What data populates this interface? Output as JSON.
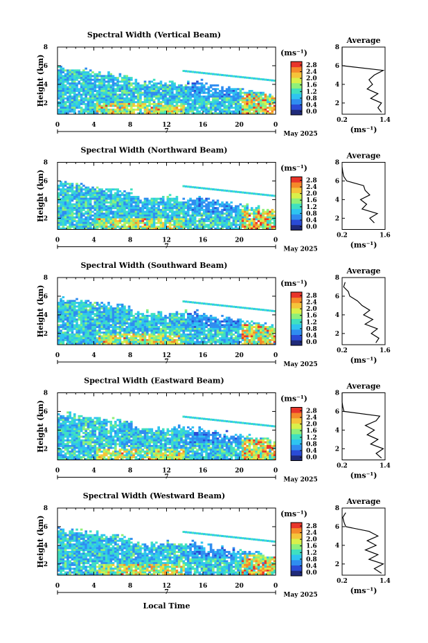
{
  "page": {
    "x_axis_label": "Local Time",
    "date_marker": "7",
    "date_label": "May 2025"
  },
  "colorbar": {
    "unit": "(ms⁻¹)",
    "ticks": [
      "0.0",
      "0.4",
      "0.8",
      "1.2",
      "1.6",
      "2.0",
      "2.4",
      "2.8"
    ],
    "colors": [
      "#1f2a7a",
      "#2a4bd6",
      "#2f8df0",
      "#2ec4f0",
      "#3fe0c0",
      "#8ef07a",
      "#d9f04a",
      "#f5c43a",
      "#f58a2a",
      "#e8352a"
    ]
  },
  "avg_panel": {
    "title": "Average",
    "unit": "(ms⁻¹)"
  },
  "chart_data": [
    {
      "type": "heatmap",
      "title": "Spectral Width (Vertical Beam)",
      "ylabel": "Height (km)",
      "xlabel": "Local Time",
      "x_ticks": [
        "0",
        "4",
        "8",
        "12",
        "16",
        "20",
        "0"
      ],
      "y_ticks": [
        "2",
        "4",
        "6",
        "8"
      ],
      "xlim": [
        0,
        24
      ],
      "ylim": [
        0.8,
        8
      ],
      "colorbar_range": [
        0.0,
        2.8
      ],
      "profile": {
        "title": "Average",
        "xlim": [
          0.2,
          1.4
        ],
        "x_ticks": [
          "0.2",
          "1.4"
        ],
        "heights": [
          1.0,
          1.5,
          2.0,
          2.5,
          3.0,
          3.5,
          4.0,
          4.5,
          5.0,
          5.5,
          6.0,
          6.5,
          7.0,
          7.5,
          8.0
        ],
        "values": [
          1.3,
          1.2,
          1.3,
          1.0,
          1.2,
          0.9,
          1.05,
          0.95,
          1.1,
          1.35,
          0.2,
          0.2,
          0.2,
          0.2,
          0.2
        ]
      }
    },
    {
      "type": "heatmap",
      "title": "Spectral Width (Northward Beam)",
      "ylabel": "Height (km)",
      "xlabel": "Local Time",
      "x_ticks": [
        "0",
        "4",
        "8",
        "12",
        "16",
        "20",
        "0"
      ],
      "y_ticks": [
        "2",
        "4",
        "6",
        "8"
      ],
      "xlim": [
        0,
        24
      ],
      "ylim": [
        0.8,
        8
      ],
      "colorbar_range": [
        0.0,
        2.8
      ],
      "profile": {
        "title": "Average",
        "xlim": [
          0.2,
          1.6
        ],
        "x_ticks": [
          "0.2",
          "1.6"
        ],
        "heights": [
          1.5,
          2.0,
          2.5,
          3.0,
          3.5,
          4.0,
          4.5,
          5.0,
          5.5,
          6.0,
          6.5,
          7.0,
          7.5
        ],
        "values": [
          1.25,
          1.1,
          1.35,
          0.85,
          1.0,
          0.8,
          1.1,
          0.95,
          0.9,
          0.35,
          0.25,
          0.22,
          0.2
        ]
      }
    },
    {
      "type": "heatmap",
      "title": "Spectral Width (Southward Beam)",
      "ylabel": "Height (km)",
      "xlabel": "Local Time",
      "x_ticks": [
        "0",
        "4",
        "8",
        "12",
        "16",
        "20",
        "0"
      ],
      "y_ticks": [
        "2",
        "4",
        "6",
        "8"
      ],
      "xlim": [
        0,
        24
      ],
      "ylim": [
        0.8,
        8
      ],
      "colorbar_range": [
        0.0,
        2.8
      ],
      "profile": {
        "title": "Average",
        "xlim": [
          0.2,
          1.6
        ],
        "x_ticks": [
          "0.2",
          "1.6"
        ],
        "heights": [
          1.0,
          1.5,
          2.0,
          2.5,
          3.0,
          3.5,
          4.0,
          4.5,
          5.0,
          5.5,
          6.0,
          6.5,
          7.0,
          7.5
        ],
        "values": [
          1.3,
          1.4,
          1.15,
          1.35,
          0.95,
          1.2,
          0.9,
          1.1,
          0.85,
          0.7,
          0.45,
          0.4,
          0.25,
          0.3
        ]
      }
    },
    {
      "type": "heatmap",
      "title": "Spectral Width (Eastward Beam)",
      "ylabel": "Height (km)",
      "xlabel": "Local Time",
      "x_ticks": [
        "0",
        "4",
        "8",
        "12",
        "16",
        "20",
        "0"
      ],
      "y_ticks": [
        "2",
        "4",
        "6",
        "8"
      ],
      "xlim": [
        0,
        24
      ],
      "ylim": [
        0.8,
        8
      ],
      "colorbar_range": [
        0.0,
        2.8
      ],
      "profile": {
        "title": "Average",
        "xlim": [
          0.2,
          1.4
        ],
        "x_ticks": [
          "0.2",
          "1.4"
        ],
        "heights": [
          1.0,
          1.5,
          2.0,
          2.5,
          3.0,
          3.5,
          4.0,
          4.5,
          5.0,
          5.5,
          6.0,
          6.5,
          7.0,
          7.5,
          8.0
        ],
        "values": [
          1.3,
          1.15,
          1.35,
          1.0,
          1.2,
          0.9,
          1.1,
          0.85,
          1.15,
          1.25,
          0.25,
          0.22,
          0.2,
          0.2,
          0.2
        ]
      }
    },
    {
      "type": "heatmap",
      "title": "Spectral Width (Westward Beam)",
      "ylabel": "Height (km)",
      "xlabel": "Local Time",
      "x_ticks": [
        "0",
        "4",
        "8",
        "12",
        "16",
        "20",
        "0"
      ],
      "y_ticks": [
        "2",
        "4",
        "6",
        "8"
      ],
      "xlim": [
        0,
        24
      ],
      "ylim": [
        0.8,
        8
      ],
      "colorbar_range": [
        0.0,
        2.8
      ],
      "profile": {
        "title": "Average",
        "xlim": [
          0.2,
          1.4
        ],
        "x_ticks": [
          "0.2",
          "1.4"
        ],
        "heights": [
          1.0,
          1.5,
          2.0,
          2.5,
          3.0,
          3.5,
          4.0,
          4.5,
          5.0,
          5.5,
          6.0,
          6.5,
          7.0,
          7.5
        ],
        "values": [
          1.3,
          1.1,
          1.35,
          0.95,
          1.2,
          0.85,
          1.15,
          0.9,
          1.2,
          0.95,
          0.3,
          0.25,
          0.22,
          0.3
        ]
      }
    }
  ]
}
